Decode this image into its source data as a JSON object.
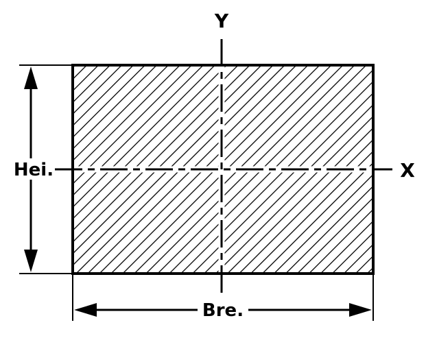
{
  "diagram": {
    "labels": {
      "y_axis": "Y",
      "x_axis": "X",
      "height": "Hei.",
      "breadth": "Bre."
    },
    "colors": {
      "stroke": "#000000",
      "background": "#ffffff"
    }
  }
}
